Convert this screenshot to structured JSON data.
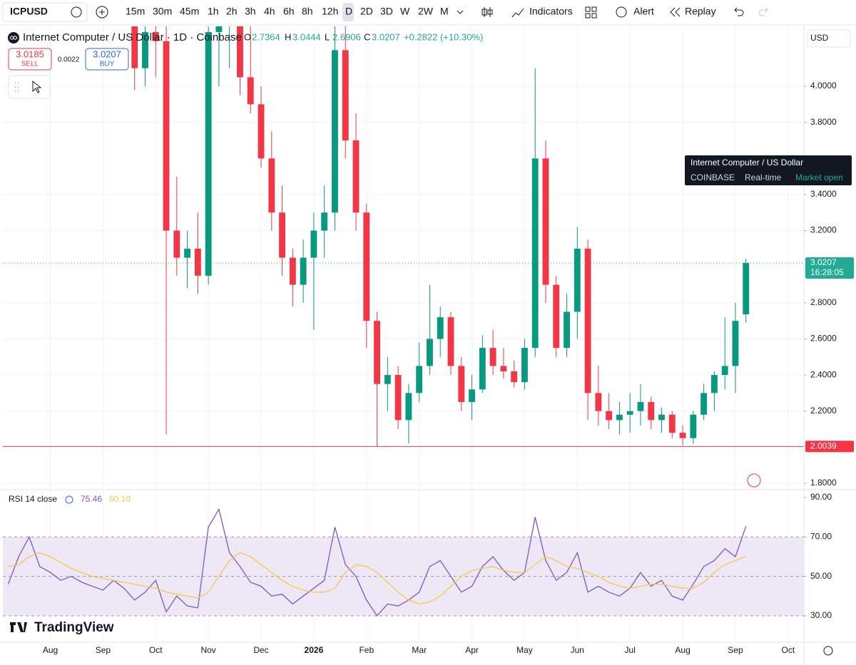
{
  "toolbar": {
    "symbol": "ICPUSD",
    "intervals": [
      "15m",
      "30m",
      "45m",
      "1h",
      "2h",
      "3h",
      "4h",
      "6h",
      "8h",
      "12h",
      "D",
      "2D",
      "3D",
      "W",
      "2W",
      "M"
    ],
    "active_interval": 10,
    "indicators": "Indicators",
    "alert": "Alert",
    "replay": "Replay"
  },
  "trade": {
    "sell_price": "3.0185",
    "sell": "SELL",
    "spread": "0.0022",
    "buy_price": "3.0207",
    "buy": "BUY"
  },
  "currency": "USD",
  "tooltip": {
    "title": "Internet Computer / US Dollar",
    "exchange": "COINBASE",
    "feed": "Real-time",
    "status": "Market open"
  },
  "watermark": "TradingView",
  "chart_data": [
    {
      "type": "candlestick",
      "title": "Internet Computer / US Dollar · 1D · Coinbase",
      "legend": [
        {
          "label": "O",
          "value": "2.7364"
        },
        {
          "label": "H",
          "value": "3.0444"
        },
        {
          "label": "L",
          "value": "2.6906"
        },
        {
          "label": "C",
          "value": "3.0207"
        }
      ],
      "change": "+0.2822 (+10.30%)",
      "categories": [
        null,
        null,
        null,
        null,
        "Aug",
        null,
        null,
        null,
        null,
        "Sep",
        null,
        null,
        null,
        null,
        "Oct",
        null,
        null,
        null,
        null,
        "Nov",
        null,
        null,
        null,
        null,
        "Dec",
        null,
        null,
        null,
        null,
        "2026",
        null,
        null,
        null,
        null,
        "Feb",
        null,
        null,
        null,
        null,
        "Mar",
        null,
        null,
        null,
        null,
        "Apr",
        null,
        null,
        null,
        null,
        "May",
        null,
        null,
        null,
        null,
        "Jun",
        null,
        null,
        null,
        null,
        "Jul",
        null,
        null,
        null,
        null,
        "Aug",
        null,
        null,
        null,
        null,
        "Sep",
        null,
        null,
        null,
        null,
        "Oct",
        null
      ],
      "open": [
        null,
        null,
        null,
        null,
        null,
        null,
        null,
        null,
        null,
        null,
        null,
        null,
        4.4,
        4.1,
        4.3,
        4.25,
        3.2,
        3.05,
        3.1,
        2.95,
        4.3,
        4.4,
        4.5,
        4.05,
        3.9,
        3.6,
        3.3,
        3.05,
        2.9,
        3.05,
        3.2,
        3.3,
        4.2,
        3.7,
        3.3,
        2.7,
        2.35,
        2.4,
        2.15,
        2.3,
        2.45,
        2.6,
        2.72,
        2.45,
        2.25,
        2.32,
        2.55,
        2.45,
        2.42,
        2.36,
        2.55,
        3.6,
        2.9,
        2.55,
        2.75,
        3.1,
        2.3,
        2.2,
        2.15,
        2.18,
        2.2,
        2.25,
        2.15,
        2.18,
        2.08,
        2.05,
        2.18,
        2.3,
        2.4,
        2.45,
        2.7364,
        null,
        null,
        null,
        null,
        null
      ],
      "high": [
        null,
        null,
        null,
        null,
        null,
        null,
        null,
        null,
        null,
        null,
        null,
        null,
        4.6,
        4.5,
        4.4,
        4.35,
        3.5,
        3.2,
        3.3,
        4.4,
        4.5,
        4.6,
        4.6,
        4.35,
        4.0,
        3.75,
        3.45,
        3.1,
        3.15,
        3.3,
        3.45,
        4.4,
        4.4,
        3.85,
        3.35,
        2.75,
        2.5,
        2.45,
        2.35,
        2.58,
        2.9,
        2.78,
        2.75,
        2.5,
        2.4,
        2.62,
        2.65,
        2.55,
        2.48,
        2.6,
        4.1,
        3.7,
        2.95,
        2.85,
        3.22,
        3.15,
        2.45,
        2.3,
        2.25,
        2.3,
        2.35,
        2.28,
        2.22,
        2.2,
        2.12,
        2.2,
        2.35,
        2.42,
        2.72,
        2.8,
        3.0444,
        null,
        null,
        null,
        null,
        null
      ],
      "low": [
        null,
        null,
        null,
        null,
        null,
        null,
        null,
        null,
        null,
        null,
        null,
        null,
        3.98,
        4.0,
        4.05,
        2.07,
        2.95,
        2.88,
        2.85,
        2.9,
        4.0,
        4.1,
        3.95,
        3.85,
        3.55,
        3.2,
        2.95,
        2.78,
        2.8,
        2.65,
        3.05,
        3.2,
        3.6,
        3.2,
        2.55,
        2.0039,
        2.2,
        2.1,
        2.02,
        2.25,
        2.4,
        2.5,
        2.4,
        2.2,
        2.15,
        2.3,
        2.4,
        2.38,
        2.33,
        2.32,
        2.5,
        2.8,
        2.5,
        2.5,
        2.6,
        2.15,
        2.12,
        2.1,
        2.07,
        2.08,
        2.12,
        2.1,
        2.08,
        2.05,
        2.01,
        2.02,
        2.15,
        2.2,
        2.32,
        2.3,
        2.6906,
        null,
        null,
        null,
        null,
        null
      ],
      "close": [
        null,
        null,
        null,
        null,
        null,
        null,
        null,
        null,
        null,
        null,
        null,
        null,
        4.1,
        4.3,
        4.25,
        3.2,
        3.05,
        3.1,
        2.95,
        4.3,
        4.4,
        4.5,
        4.05,
        3.9,
        3.6,
        3.3,
        3.05,
        2.9,
        3.05,
        3.2,
        3.3,
        4.2,
        3.7,
        3.3,
        2.7,
        2.35,
        2.4,
        2.15,
        2.3,
        2.45,
        2.6,
        2.72,
        2.45,
        2.25,
        2.32,
        2.55,
        2.45,
        2.42,
        2.36,
        2.55,
        3.6,
        2.9,
        2.55,
        2.75,
        3.1,
        2.3,
        2.2,
        2.15,
        2.18,
        2.2,
        2.25,
        2.15,
        2.18,
        2.08,
        2.05,
        2.18,
        2.3,
        2.4,
        2.45,
        2.7,
        3.0207,
        null,
        null,
        null,
        null,
        null
      ],
      "up_color": "#089981",
      "down_color": "#f23645",
      "price_lines": [
        {
          "value": 3.0207,
          "countdown": "16:28:05",
          "color": "#22ab94",
          "style": "dotted"
        },
        {
          "value": 2.0039,
          "color": "#f23645",
          "style": "solid"
        }
      ],
      "ylim": [
        1.7684,
        4.3318
      ],
      "yticks": [
        {
          "value": 1.8,
          "label": "1.8000"
        },
        {
          "value": 2.2,
          "label": "2.2000"
        },
        {
          "value": 2.4,
          "label": "2.4000"
        },
        {
          "value": 2.6,
          "label": "2.6000"
        },
        {
          "value": 2.8,
          "label": "2.8000"
        },
        {
          "value": 3.2,
          "label": "3.2000"
        },
        {
          "value": 3.4,
          "label": "3.4000"
        },
        {
          "value": 3.8,
          "label": "3.8000"
        },
        {
          "value": 4,
          "label": "4.0000"
        }
      ],
      "grid": true
    },
    {
      "type": "line",
      "title": "RSI 14 close",
      "series": [
        {
          "color": "#7e57c2",
          "values": [
            46,
            60,
            70,
            55,
            52,
            48,
            50,
            47,
            45,
            43,
            48,
            44,
            38,
            42,
            48,
            32,
            40,
            35,
            34,
            75,
            84,
            62,
            55,
            47,
            45,
            40,
            41,
            36,
            40,
            44,
            48,
            75,
            56,
            50,
            38,
            30,
            36,
            35,
            38,
            42,
            55,
            58,
            50,
            42,
            45,
            55,
            60,
            53,
            48,
            52,
            80,
            58,
            48,
            52,
            62,
            42,
            45,
            42,
            40,
            44,
            52,
            45,
            48,
            40,
            38,
            46,
            55,
            58,
            64,
            60,
            75.46,
            null,
            null,
            null,
            null,
            null
          ]
        },
        {
          "color": "#f7c948",
          "values": [
            55,
            56,
            60,
            62,
            60,
            57,
            54,
            52,
            50,
            49,
            48,
            47,
            46,
            45,
            44,
            42,
            41,
            40,
            39,
            42,
            50,
            58,
            62,
            60,
            56,
            52,
            48,
            45,
            43,
            42,
            42,
            44,
            52,
            56,
            55,
            52,
            47,
            42,
            38,
            36,
            37,
            40,
            45,
            50,
            53,
            54,
            55,
            53,
            52,
            52,
            56,
            60,
            58,
            55,
            54,
            52,
            50,
            47,
            45,
            44,
            45,
            46,
            46,
            45,
            44,
            44,
            47,
            52,
            56,
            58,
            60.1,
            null,
            null,
            null,
            null,
            null
          ],
          "value_labels": [
            null,
            null,
            null,
            null,
            null,
            null,
            null,
            null,
            null,
            null,
            null,
            null,
            null,
            null,
            null,
            null,
            null,
            null,
            null,
            null,
            null,
            null,
            null,
            null,
            null,
            null,
            null,
            null,
            null,
            null,
            null,
            null,
            null,
            null,
            null,
            null,
            null,
            null,
            null,
            null,
            null,
            null,
            null,
            null,
            null,
            null,
            null,
            null,
            null,
            null,
            null,
            null,
            null,
            null,
            null,
            null,
            null,
            null,
            null,
            null,
            null,
            null,
            null,
            null,
            null,
            null,
            null,
            null,
            null,
            null,
            "60.10",
            null,
            null,
            null,
            null,
            null
          ]
        }
      ],
      "band": {
        "lower": 30,
        "upper": 70,
        "color": "#ede7f6"
      },
      "levels": [
        70,
        50,
        30
      ],
      "ylim": [
        16.99,
        93.61
      ],
      "yticks": [
        {
          "value": 30,
          "label": "30.00"
        },
        {
          "value": 50,
          "label": "50.00"
        },
        {
          "value": 70,
          "label": "70.00"
        },
        {
          "value": 90,
          "label": "90.00"
        }
      ]
    }
  ]
}
